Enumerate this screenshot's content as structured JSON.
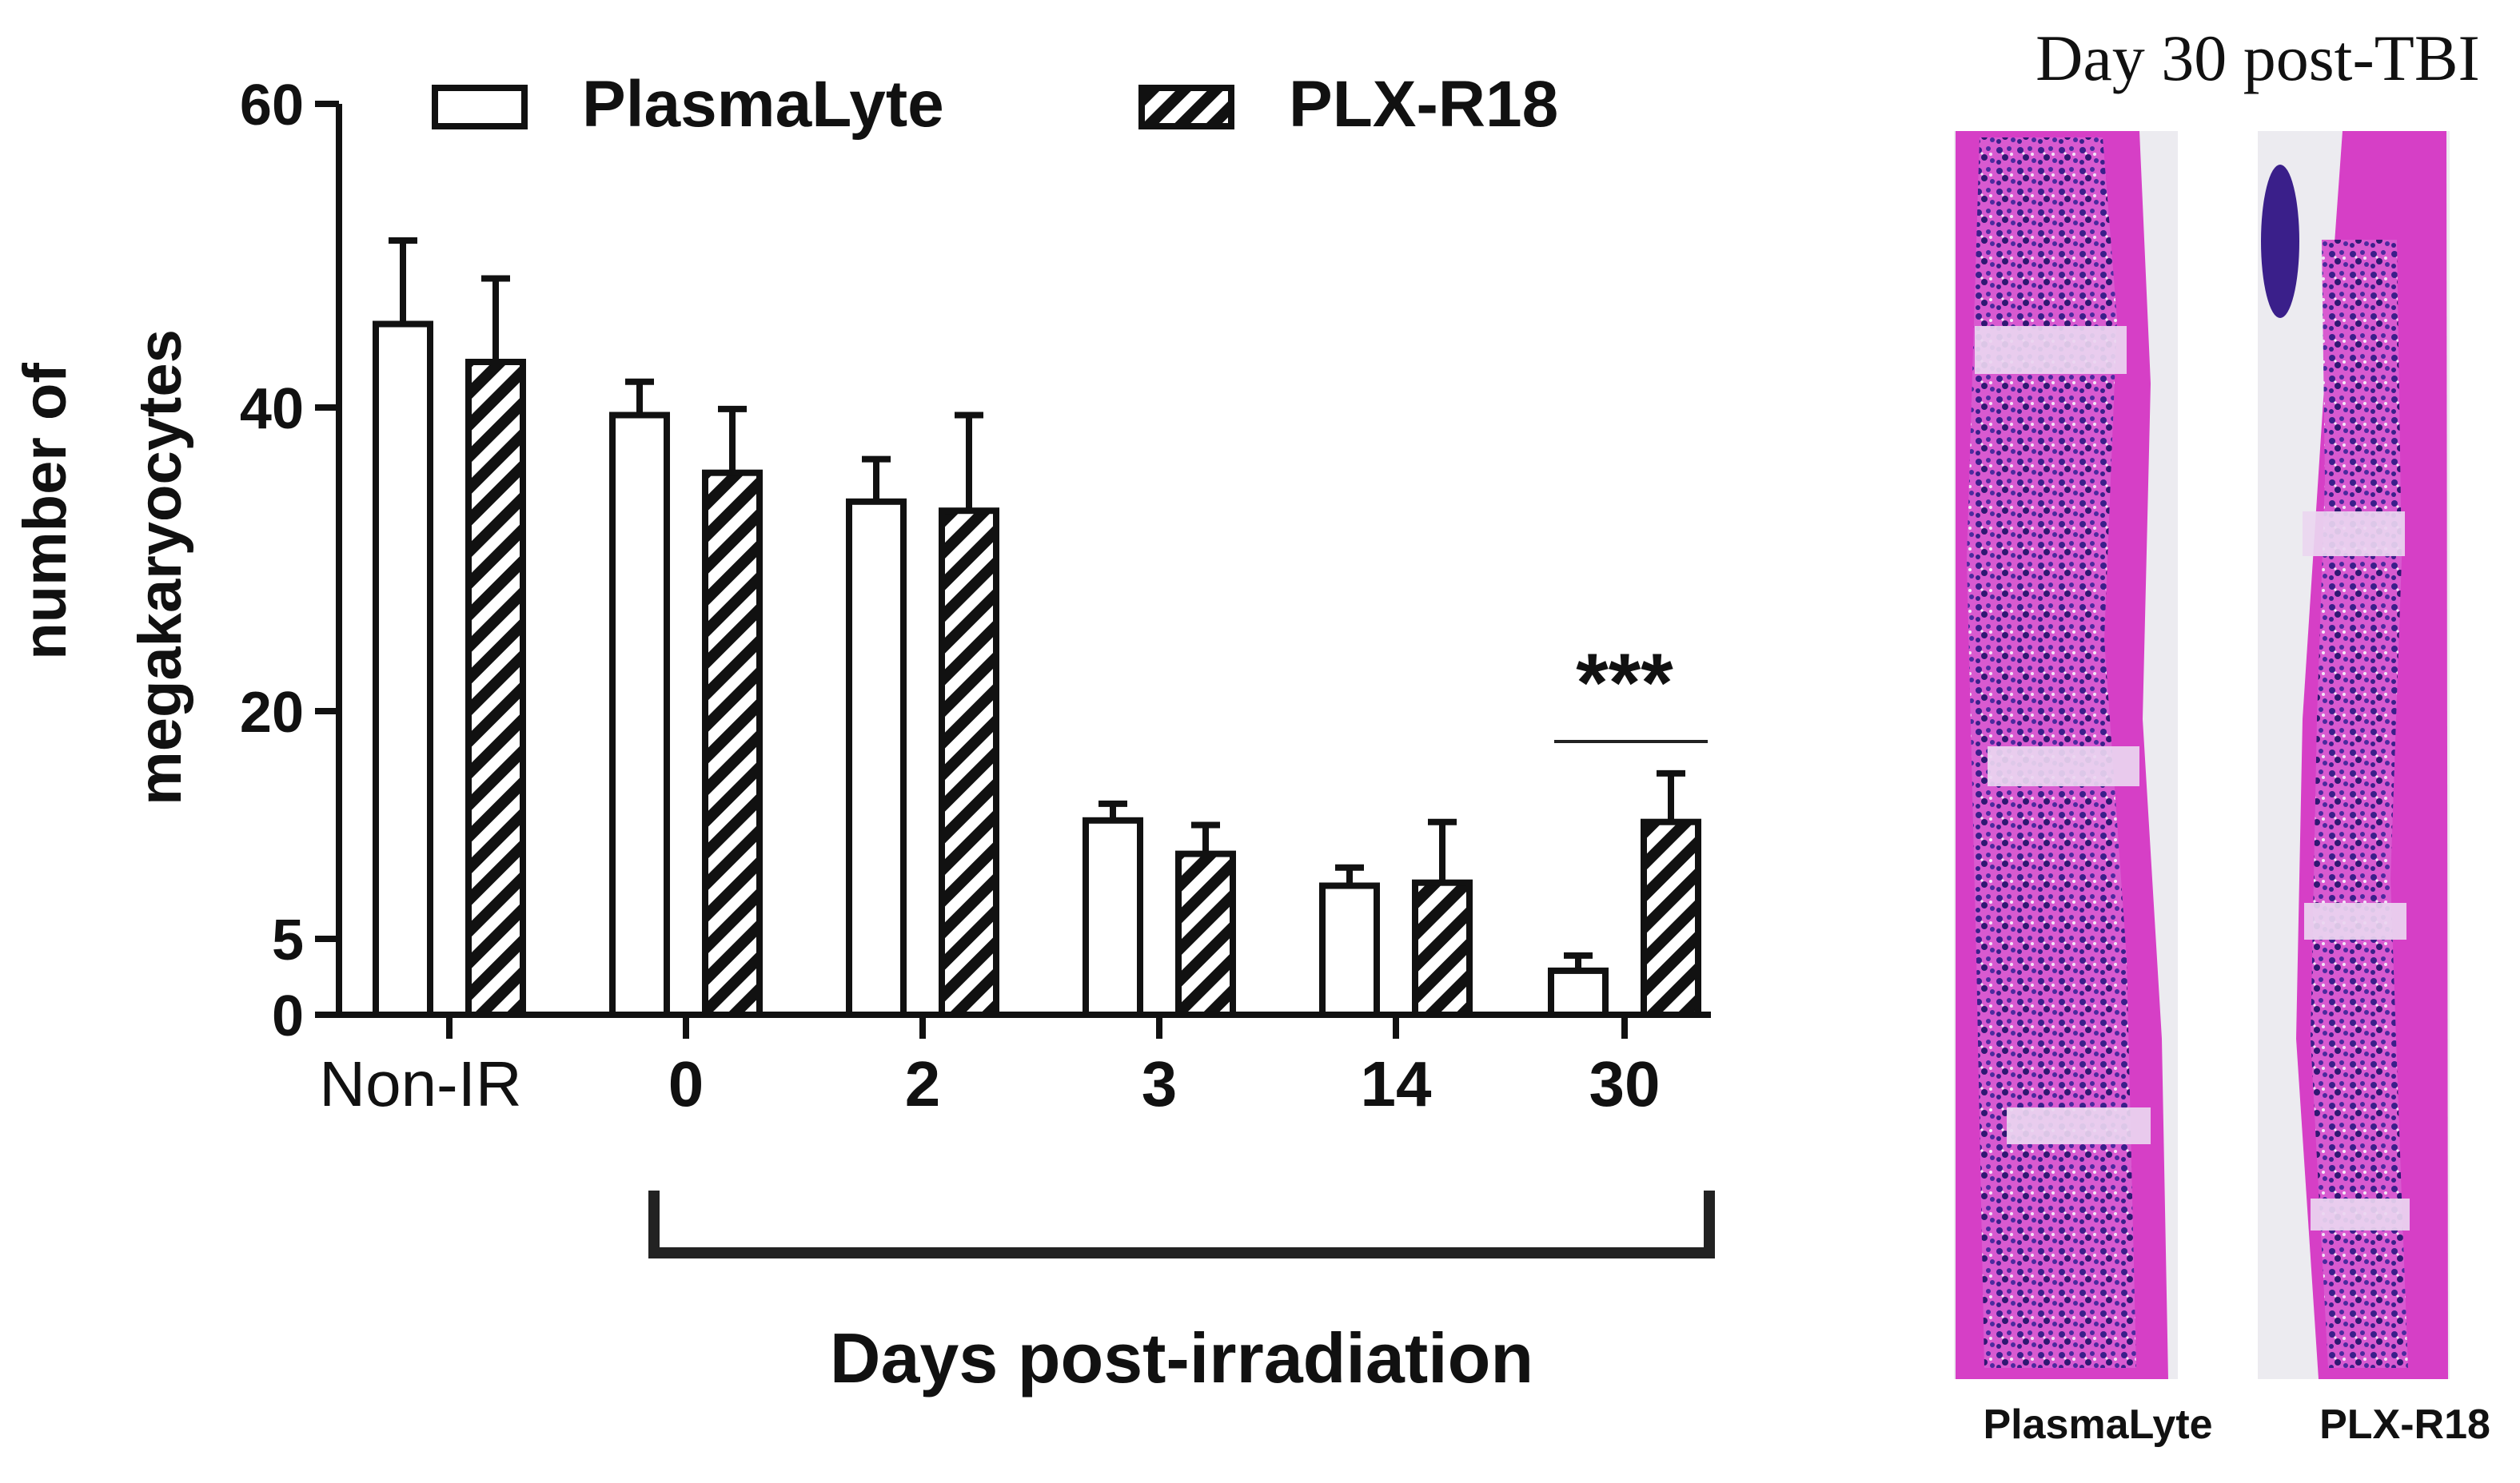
{
  "chart_data": {
    "type": "bar",
    "ylabel": [
      "number of",
      "megakaryocytes"
    ],
    "xlabel": "Days post-irradiation",
    "categories": [
      "Non-IR",
      "0",
      "2",
      "3",
      "14",
      "30"
    ],
    "yticks": [
      0,
      5,
      20,
      40,
      60
    ],
    "ylim": [
      0,
      60
    ],
    "legend_position": "top",
    "series": [
      {
        "name": "PlasmaLyte",
        "pattern": "open",
        "values": [
          45.5,
          39.5,
          33.8,
          12.8,
          8.5,
          2.9
        ],
        "errors": [
          5.5,
          2.2,
          2.8,
          1.1,
          1.2,
          1.0
        ]
      },
      {
        "name": "PLX-R18",
        "pattern": "hatched",
        "values": [
          43,
          35.7,
          33.2,
          10.6,
          8.7,
          12.7
        ],
        "errors": [
          5.5,
          4.2,
          6.3,
          1.9,
          4.0,
          3.2
        ]
      }
    ],
    "annotation": {
      "text": "***",
      "category": "30"
    }
  },
  "histology": {
    "title": "Day 30 post-TBI",
    "labels": [
      "PlasmaLyte",
      "PLX-R18"
    ]
  },
  "colors": {
    "ink": "#111111",
    "stain_pink": "#d43fc4",
    "stain_purple": "#3a1f8a",
    "background": "#ffffff"
  }
}
